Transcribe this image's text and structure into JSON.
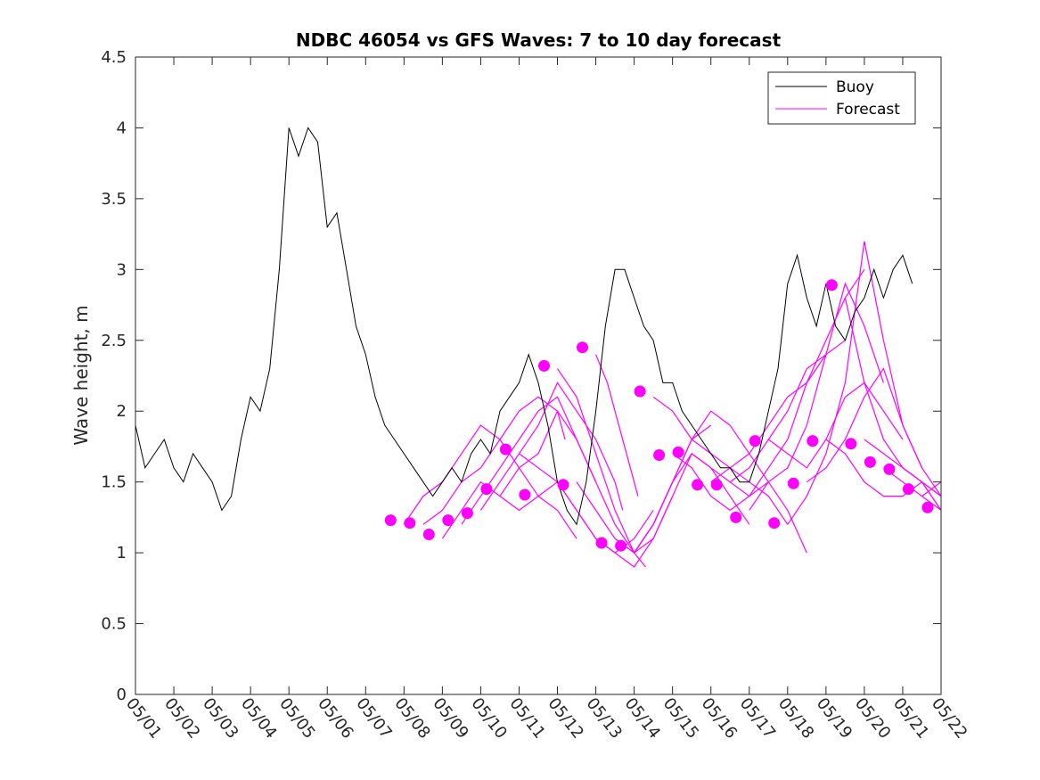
{
  "chart_data": {
    "type": "line",
    "title": "NDBC 46054 vs GFS Waves: 7 to 10 day forecast",
    "xlabel": "",
    "ylabel": "Wave height, m",
    "xlim": [
      "05/01",
      "05/22"
    ],
    "ylim": [
      0,
      4.5
    ],
    "grid": false,
    "legend_position": "top-right",
    "x_tick_labels": [
      "05/01",
      "05/02",
      "05/03",
      "05/04",
      "05/05",
      "05/06",
      "05/07",
      "05/08",
      "05/09",
      "05/10",
      "05/11",
      "05/12",
      "05/13",
      "05/14",
      "05/15",
      "05/16",
      "05/17",
      "05/18",
      "05/19",
      "05/20",
      "05/21",
      "05/22"
    ],
    "y_tick_labels": [
      "0",
      "0.5",
      "1",
      "1.5",
      "2",
      "2.5",
      "3",
      "3.5",
      "4",
      "4.5"
    ],
    "colors": {
      "buoy": "#000000",
      "forecast": "#ff00ff"
    },
    "series": [
      {
        "name": "Buoy",
        "x": [
          0.0,
          0.25,
          0.5,
          0.75,
          1.0,
          1.25,
          1.5,
          1.75,
          2.0,
          2.25,
          2.5,
          2.75,
          3.0,
          3.25,
          3.5,
          3.75,
          4.0,
          4.25,
          4.5,
          4.75,
          5.0,
          5.25,
          5.5,
          5.75,
          6.0,
          6.25,
          6.5,
          6.75,
          7.0,
          7.25,
          7.5,
          7.75,
          8.0,
          8.25,
          8.5,
          8.75,
          9.0,
          9.25,
          9.5,
          9.75,
          10.0,
          10.25,
          10.5,
          10.75,
          11.0,
          11.25,
          11.5,
          11.75,
          12.0,
          12.25,
          12.5,
          12.75,
          13.0,
          13.25,
          13.5,
          13.75,
          14.0,
          14.25,
          14.5,
          14.75,
          15.0,
          15.25,
          15.5,
          15.75,
          16.0,
          16.25,
          16.5,
          16.75,
          17.0,
          17.25,
          17.5,
          17.75,
          18.0,
          18.25,
          18.5,
          18.75,
          19.0,
          19.25,
          19.5,
          19.75,
          20.0,
          20.25
        ],
        "y": [
          1.9,
          1.6,
          1.7,
          1.8,
          1.6,
          1.5,
          1.7,
          1.6,
          1.5,
          1.3,
          1.4,
          1.8,
          2.1,
          2.0,
          2.3,
          3.0,
          4.0,
          3.8,
          4.0,
          3.9,
          3.3,
          3.4,
          3.0,
          2.6,
          2.4,
          2.1,
          1.9,
          1.8,
          1.7,
          1.6,
          1.5,
          1.4,
          1.5,
          1.6,
          1.5,
          1.7,
          1.8,
          1.7,
          2.0,
          2.1,
          2.2,
          2.4,
          2.2,
          1.9,
          1.5,
          1.3,
          1.2,
          1.5,
          2.0,
          2.6,
          3.0,
          3.0,
          2.8,
          2.6,
          2.5,
          2.2,
          2.2,
          2.0,
          1.9,
          1.8,
          1.7,
          1.6,
          1.6,
          1.5,
          1.5,
          1.7,
          2.0,
          2.3,
          2.9,
          3.1,
          2.8,
          2.6,
          2.9,
          2.6,
          2.5,
          2.7,
          2.8,
          3.0,
          2.8,
          3.0,
          3.1,
          2.9
        ]
      },
      {
        "name": "Forecast",
        "runs": [
          {
            "x": [
              7.0,
              7.5,
              8.0,
              8.5,
              9.0,
              9.5,
              10.0,
              10.5
            ],
            "y": [
              1.2,
              1.4,
              1.5,
              1.7,
              1.9,
              1.8,
              1.6,
              1.4
            ]
          },
          {
            "x": [
              7.5,
              8.0,
              8.5,
              9.0,
              9.5,
              10.0,
              10.5,
              11.0,
              11.2
            ],
            "y": [
              1.2,
              1.3,
              1.5,
              1.6,
              1.8,
              2.0,
              2.1,
              2.0,
              1.8
            ]
          },
          {
            "x": [
              8.0,
              8.5,
              9.0,
              9.5,
              10.0,
              10.5,
              11.0,
              11.5
            ],
            "y": [
              1.1,
              1.3,
              1.5,
              1.4,
              1.3,
              1.4,
              1.3,
              1.1
            ]
          },
          {
            "x": [
              8.5,
              9.0,
              9.5,
              10.0,
              10.5,
              11.0,
              11.5,
              12.0
            ],
            "y": [
              1.2,
              1.4,
              1.6,
              1.8,
              2.0,
              2.1,
              1.8,
              1.5
            ]
          },
          {
            "x": [
              9.0,
              9.5,
              10.0,
              10.5,
              11.0,
              11.5,
              12.0,
              12.5,
              12.7
            ],
            "y": [
              1.3,
              1.5,
              1.7,
              1.9,
              2.2,
              2.0,
              1.8,
              1.5,
              1.3
            ]
          },
          {
            "x": [
              9.5,
              10.0,
              10.5,
              11.0,
              11.5,
              12.0,
              12.5,
              13.0,
              13.3
            ],
            "y": [
              1.4,
              1.6,
              1.7,
              2.0,
              1.8,
              1.5,
              1.2,
              1.0,
              0.9
            ]
          },
          {
            "x": [
              10.0,
              10.5,
              11.0,
              11.5,
              12.0,
              12.5,
              13.0,
              13.5
            ],
            "y": [
              1.7,
              1.6,
              1.5,
              1.3,
              1.1,
              1.0,
              1.1,
              1.3
            ]
          },
          {
            "x": [
              10.5,
              11.0,
              11.5,
              12.0,
              12.5,
              13.0,
              13.5,
              14.0
            ],
            "y": [
              1.4,
              1.5,
              1.3,
              1.1,
              1.0,
              0.9,
              1.1,
              1.4
            ]
          },
          {
            "x": [
              11.0,
              11.5,
              12.0,
              12.5,
              13.0,
              13.5,
              14.0,
              14.5
            ],
            "y": [
              2.3,
              2.1,
              1.7,
              1.3,
              1.0,
              1.1,
              1.4,
              1.7
            ]
          },
          {
            "x": [
              11.5,
              12.0,
              12.5,
              13.0,
              13.5,
              14.0,
              14.5,
              15.0
            ],
            "y": [
              1.5,
              1.3,
              1.1,
              1.0,
              1.2,
              1.5,
              1.8,
              1.9
            ]
          },
          {
            "x": [
              12.0,
              12.3,
              12.6,
              12.9,
              13.1
            ],
            "y": [
              2.4,
              2.2,
              1.9,
              1.6,
              1.4
            ]
          },
          {
            "x": [
              12.5,
              13.0,
              13.5,
              14.0,
              14.5,
              15.0,
              15.5,
              16.0
            ],
            "y": [
              1.1,
              1.0,
              1.2,
              1.5,
              1.7,
              1.6,
              1.4,
              1.2
            ]
          },
          {
            "x": [
              13.0,
              13.5,
              14.0,
              14.5,
              15.0,
              15.5,
              16.0,
              16.5
            ],
            "y": [
              1.0,
              1.2,
              1.5,
              1.8,
              2.0,
              1.9,
              1.7,
              1.5
            ]
          },
          {
            "x": [
              13.5,
              14.0,
              14.5,
              15.0,
              15.5,
              16.0,
              16.5,
              17.0
            ],
            "y": [
              2.1,
              2.0,
              1.8,
              1.7,
              1.6,
              1.5,
              1.4,
              1.2
            ]
          },
          {
            "x": [
              14.0,
              14.5,
              15.0,
              15.5,
              16.0,
              16.5,
              17.0,
              17.5
            ],
            "y": [
              1.7,
              1.6,
              1.4,
              1.3,
              1.4,
              1.5,
              1.3,
              1.0
            ]
          },
          {
            "x": [
              14.5,
              15.0,
              15.5,
              16.0,
              16.5,
              17.0,
              17.5,
              18.0
            ],
            "y": [
              1.7,
              1.6,
              1.5,
              1.6,
              1.8,
              2.0,
              2.3,
              2.4
            ]
          },
          {
            "x": [
              15.0,
              15.5,
              16.0,
              16.5,
              17.0,
              17.5,
              18.0,
              18.5
            ],
            "y": [
              1.5,
              1.6,
              1.7,
              1.9,
              2.1,
              2.2,
              2.4,
              2.5
            ]
          },
          {
            "x": [
              15.5,
              16.0,
              16.5,
              17.0,
              17.5,
              18.0,
              18.5,
              19.0
            ],
            "y": [
              1.5,
              1.4,
              1.6,
              1.8,
              2.2,
              2.5,
              2.8,
              3.0
            ]
          },
          {
            "x": [
              16.0,
              16.5,
              17.0,
              17.5,
              18.0,
              18.5,
              19.0,
              19.5
            ],
            "y": [
              1.3,
              1.5,
              1.6,
              1.9,
              2.4,
              2.9,
              2.6,
              2.2
            ]
          },
          {
            "x": [
              16.5,
              17.0,
              17.5,
              18.0,
              18.5,
              19.0,
              19.5,
              20.0
            ],
            "y": [
              1.8,
              1.7,
              1.6,
              1.8,
              2.1,
              2.2,
              2.0,
              1.8
            ]
          },
          {
            "x": [
              17.0,
              17.5,
              18.0,
              18.5,
              19.0,
              19.5,
              20.0,
              20.5
            ],
            "y": [
              1.2,
              1.4,
              1.7,
              2.2,
              3.2,
              2.5,
              1.9,
              1.6
            ]
          },
          {
            "x": [
              17.5,
              18.0,
              18.5,
              19.0,
              19.5,
              20.0,
              20.5,
              21.0
            ],
            "y": [
              1.5,
              1.6,
              1.8,
              2.1,
              2.3,
              1.9,
              1.6,
              1.4
            ]
          },
          {
            "x": [
              18.0,
              18.5,
              19.0,
              19.5,
              20.0,
              20.5,
              21.0
            ],
            "y": [
              1.8,
              1.7,
              1.5,
              1.4,
              1.4,
              1.5,
              1.4
            ]
          },
          {
            "x": [
              18.5,
              19.0,
              19.5,
              20.0,
              20.5,
              21.0
            ],
            "y": [
              2.8,
              2.2,
              1.8,
              1.6,
              1.5,
              1.3
            ]
          },
          {
            "x": [
              19.0,
              19.5,
              20.0,
              20.5,
              21.0
            ],
            "y": [
              1.8,
              1.7,
              1.6,
              1.5,
              1.3
            ]
          },
          {
            "x": [
              19.5,
              20.0,
              20.5,
              21.0
            ],
            "y": [
              1.6,
              1.5,
              1.4,
              1.5
            ]
          },
          {
            "x": [
              20.0,
              20.5,
              21.0
            ],
            "y": [
              1.6,
              1.5,
              1.4
            ]
          },
          {
            "x": [
              20.5,
              21.0
            ],
            "y": [
              1.4,
              1.3
            ]
          }
        ],
        "points": {
          "x": [
            6.65,
            7.15,
            7.65,
            8.15,
            8.65,
            9.15,
            9.65,
            10.15,
            10.65,
            11.15,
            11.65,
            12.15,
            12.65,
            13.15,
            13.65,
            14.15,
            14.65,
            15.15,
            15.65,
            16.15,
            16.65,
            17.15,
            17.65,
            18.15,
            18.65,
            19.15,
            19.65,
            20.15,
            20.65
          ],
          "y": [
            1.23,
            1.21,
            1.13,
            1.23,
            1.28,
            1.45,
            1.73,
            1.41,
            2.32,
            1.48,
            2.45,
            1.07,
            1.05,
            2.14,
            1.69,
            1.71,
            1.48,
            1.48,
            1.25,
            1.79,
            1.21,
            1.49,
            1.79,
            2.89,
            1.77,
            1.64,
            1.59,
            1.45,
            1.32
          ]
        }
      }
    ]
  }
}
